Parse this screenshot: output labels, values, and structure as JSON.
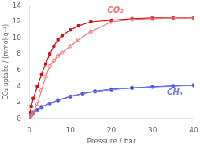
{
  "chart_data": {
    "type": "line",
    "xlabel": "Pressure / bar",
    "ylabel": "CO₂ uptake / (mmol·g⁻¹)",
    "xlim": [
      0,
      40
    ],
    "ylim": [
      0,
      14
    ],
    "xticks": [
      0,
      10,
      20,
      30,
      40
    ],
    "yticks": [
      0,
      2,
      4,
      6,
      8,
      10,
      12,
      14
    ],
    "grid": false,
    "series": [
      {
        "color": "#e87878",
        "marker": "circle",
        "x": [
          0.05,
          0.1,
          0.3,
          0.5,
          1.0,
          2.0,
          3.0,
          4.0,
          5.0,
          6.0,
          7.0,
          8.0,
          10.0,
          12.0,
          15.0,
          20.0,
          25.0,
          30.0,
          35.0,
          40.0
        ],
        "values": [
          0.08,
          0.15,
          0.3,
          0.45,
          0.8,
          1.8,
          3.5,
          5.2,
          6.5,
          7.2,
          7.8,
          8.2,
          9.0,
          9.8,
          10.8,
          12.0,
          12.3,
          12.4,
          12.5,
          12.5
        ]
      },
      {
        "color": "#cc1111",
        "marker": "square",
        "x": [
          0.05,
          0.2,
          0.5,
          1.0,
          2.0,
          3.0,
          4.0,
          5.0,
          6.0,
          7.0,
          8.0,
          10.0,
          12.0,
          15.0,
          20.0,
          25.0,
          30.0,
          35.0,
          40.0
        ],
        "values": [
          0.2,
          0.7,
          1.5,
          2.5,
          4.0,
          5.5,
          6.8,
          8.0,
          9.0,
          9.8,
          10.3,
          11.0,
          11.5,
          12.0,
          12.2,
          12.4,
          12.5,
          12.5,
          12.5
        ]
      },
      {
        "color": "#7777ee",
        "marker": "circle",
        "x": [
          0.05,
          0.1,
          0.2,
          0.5,
          1.0,
          2.0,
          3.0,
          5.0,
          7.0,
          10.0,
          13.0,
          16.0,
          20.0,
          25.0,
          30.0,
          35.0,
          40.0
        ],
        "values": [
          0.05,
          0.1,
          0.18,
          0.38,
          0.65,
          1.05,
          1.4,
          1.85,
          2.25,
          2.72,
          3.08,
          3.35,
          3.6,
          3.78,
          3.92,
          4.02,
          4.12
        ]
      },
      {
        "color": "#2233cc",
        "marker": "square",
        "x": [
          0.05,
          0.1,
          0.2,
          0.5,
          1.0,
          2.0,
          3.0,
          5.0,
          7.0,
          10.0,
          13.0,
          16.0,
          20.0,
          25.0,
          30.0,
          35.0,
          40.0
        ],
        "values": [
          0.07,
          0.12,
          0.2,
          0.4,
          0.68,
          1.08,
          1.43,
          1.88,
          2.28,
          2.75,
          3.1,
          3.38,
          3.62,
          3.8,
          3.94,
          4.05,
          4.15
        ]
      }
    ],
    "annotations": [
      {
        "text": "CO₂",
        "x": 19,
        "y": 13.2,
        "color": "#e87878"
      },
      {
        "text": "CH₄",
        "x": 33.5,
        "y": 3.0,
        "color": "#7777ee"
      }
    ]
  }
}
